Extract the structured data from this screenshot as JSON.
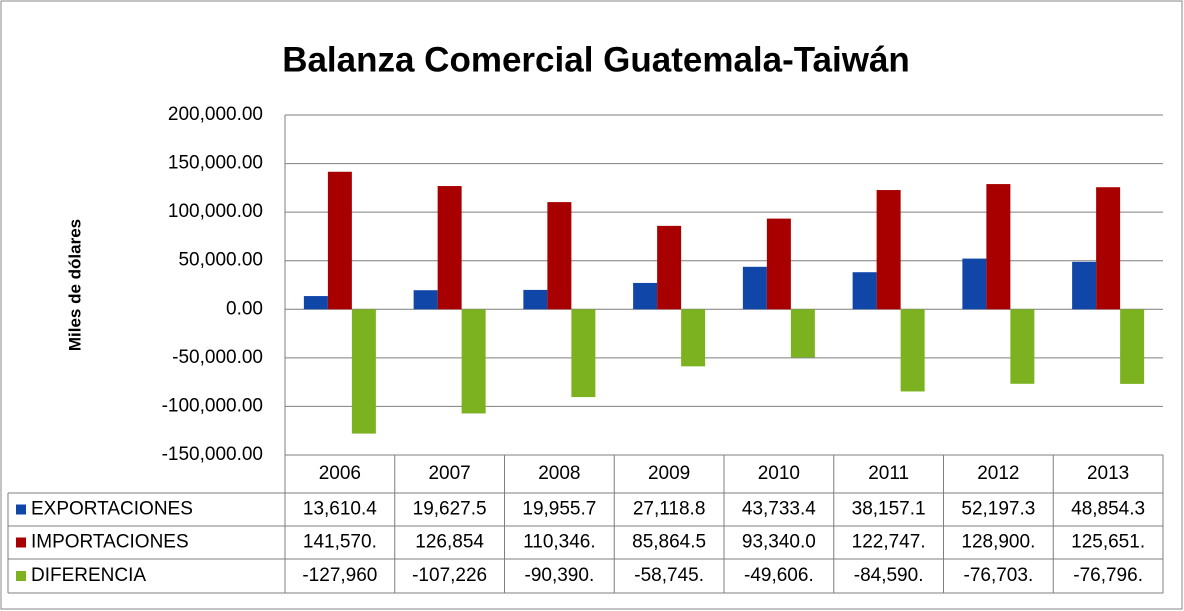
{
  "chart_data": {
    "type": "bar",
    "title": "Balanza Comercial Guatemala-Taiwán",
    "y_label": "Miles de dólares",
    "categories": [
      "2006",
      "2007",
      "2008",
      "2009",
      "2010",
      "2011",
      "2012",
      "2013"
    ],
    "series": [
      {
        "name": "EXPORTACIONES",
        "color": "#0f46a8",
        "values": [
          13610.4,
          19627.5,
          19955.7,
          27118.8,
          43733.4,
          38157.1,
          52197.3,
          48854.3
        ],
        "value_labels": [
          "13,610.4",
          "19,627.5",
          "19,955.7",
          "27,118.8",
          "43,733.4",
          "38,157.1",
          "52,197.3",
          "48,854.3"
        ]
      },
      {
        "name": "IMPORTACIONES",
        "color": "#a80000",
        "values": [
          141570,
          126854,
          110346,
          85864.5,
          93340.0,
          122747,
          128900,
          125651
        ],
        "value_labels": [
          "141,570.",
          "126,854",
          "110,346.",
          "85,864.5",
          "93,340.0",
          "122,747.",
          "128,900.",
          "125,651."
        ]
      },
      {
        "name": "DIFERENCIA",
        "color": "#7cb21f",
        "values": [
          -127960,
          -107226,
          -90390,
          -58745,
          -49606,
          -84590,
          -76703,
          -76796
        ],
        "value_labels": [
          "-127,960",
          "-107,226",
          "-90,390.",
          "-58,745.",
          "-49,606.",
          "-84,590.",
          "-76,703.",
          "-76,796."
        ]
      }
    ],
    "ylim": [
      -150000,
      200000
    ],
    "yticks": [
      {
        "value": -150000,
        "label": "-150,000.00"
      },
      {
        "value": -100000,
        "label": "-100,000.00"
      },
      {
        "value": -50000,
        "label": "-50,000.00"
      },
      {
        "value": 0,
        "label": "0.00"
      },
      {
        "value": 50000,
        "label": "50,000.00"
      },
      {
        "value": 100000,
        "label": "100,000.00"
      },
      {
        "value": 150000,
        "label": "150,000.00"
      },
      {
        "value": 200000,
        "label": "200,000.00"
      }
    ],
    "grid": true
  }
}
